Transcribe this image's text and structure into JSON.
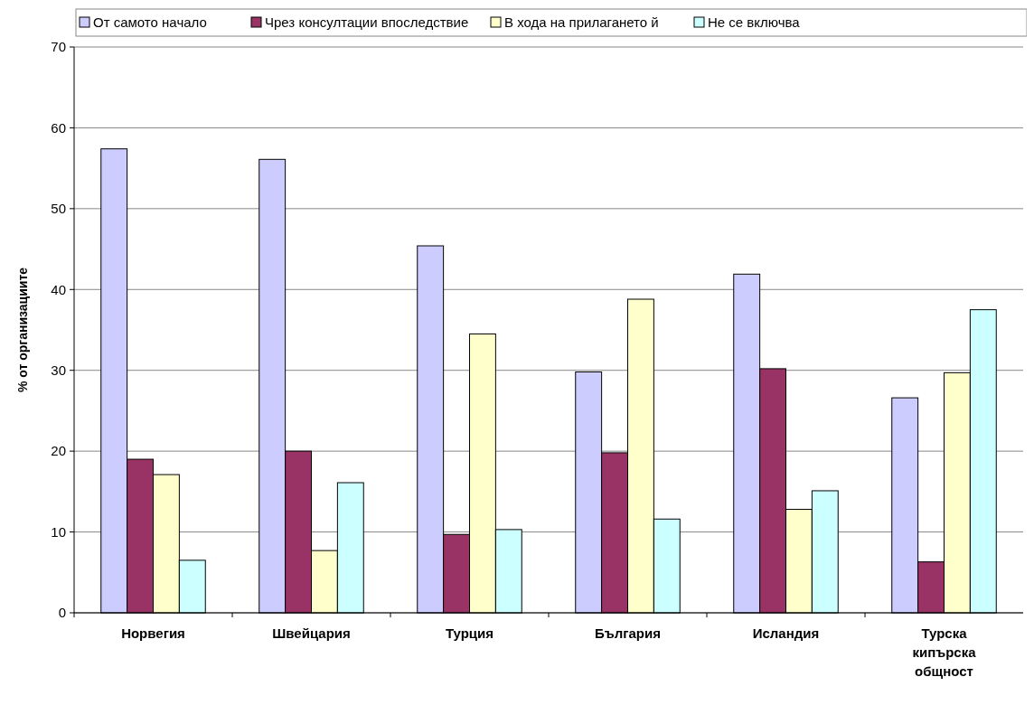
{
  "chart_data": {
    "type": "bar",
    "ylabel": "% от организациите",
    "categories": [
      "Норвегия",
      "Швейцария",
      "Турция",
      "България",
      "Исландия",
      "Турска кипърска общност"
    ],
    "series": [
      {
        "name": "От самото начало",
        "color": "#ccccff",
        "values": [
          57.4,
          56.1,
          45.4,
          29.8,
          41.9,
          26.6
        ]
      },
      {
        "name": "Чрез консултации впоследствие",
        "color": "#993366",
        "values": [
          19.0,
          20.0,
          9.7,
          19.8,
          30.2,
          6.3
        ]
      },
      {
        "name": "В хода на прилагането й",
        "color": "#ffffcc",
        "values": [
          17.1,
          7.7,
          34.5,
          38.8,
          12.8,
          29.7
        ]
      },
      {
        "name": "Не се включва",
        "color": "#ccffff",
        "values": [
          6.5,
          16.1,
          10.3,
          11.6,
          15.1,
          37.5
        ]
      }
    ],
    "ylim": [
      0,
      70
    ],
    "yticks": [
      0,
      10,
      20,
      30,
      40,
      50,
      60,
      70
    ],
    "grid": "y",
    "legend": "top"
  }
}
